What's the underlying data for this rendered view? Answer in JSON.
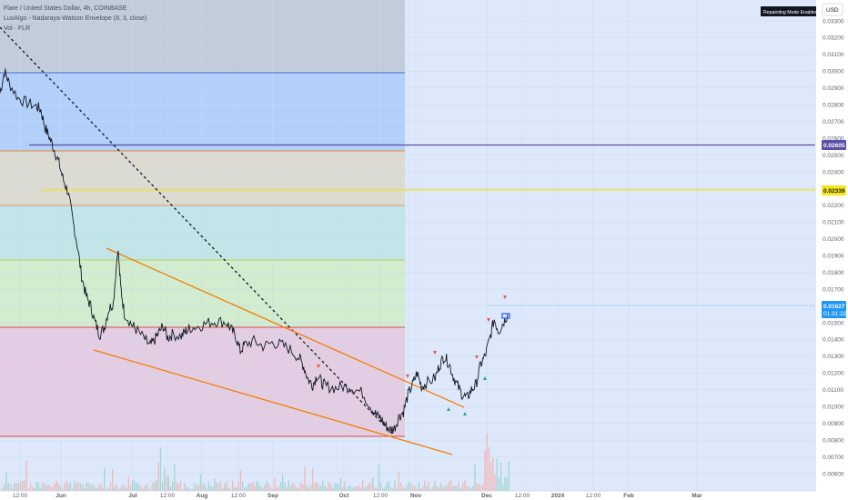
{
  "legend": {
    "symbol_line": "Flare / United States Dollar, 4h, COINBASE",
    "indicator_line": "LuxAlgo - Nadaraya-Watson Envelope (8, 3, close)",
    "volume_line": "Vol · FLR"
  },
  "currency_button": "USD",
  "repaint_badge": "Repainting Mode Enabled",
  "price_tags": {
    "purple": "0.02605",
    "yellow": "0.02339",
    "current_price": "0.01627",
    "countdown": "01:31:22"
  },
  "colors": {
    "purple_line": "#5b4fa8",
    "yellow_line": "#f2e61a",
    "current_tag": "#2196f3",
    "wedge_line": "#f57c00",
    "candle": "#131722"
  },
  "chart_data": {
    "type": "candlestick",
    "title": "Flare / United States Dollar, 4h, COINBASE",
    "y_axis": {
      "ticks": [
        "0.03300",
        "0.03200",
        "0.03100",
        "0.03000",
        "0.02900",
        "0.02800",
        "0.02700",
        "0.02600",
        "0.02500",
        "0.02400",
        "0.02300",
        "0.02200",
        "0.02100",
        "0.02000",
        "0.01900",
        "0.01800",
        "0.01700",
        "0.01600",
        "0.01500",
        "0.01400",
        "0.01300",
        "0.01200",
        "0.01100",
        "0.01000",
        "0.00900",
        "0.00800",
        "0.00700",
        "0.00600"
      ],
      "range": [
        0.0056,
        0.0338
      ]
    },
    "x_axis": {
      "ticks": [
        "12:00",
        "Jun",
        "Jul",
        "12:00",
        "Aug",
        "12:00",
        "Sep",
        "Oct",
        "12:00",
        "Nov",
        "Dec",
        "12:00",
        "2024",
        "12:00",
        "Feb",
        "Mar"
      ]
    },
    "horizontal_levels": [
      {
        "label": "0.02605",
        "value": 0.02605
      },
      {
        "label": "0.02339",
        "value": 0.02339
      }
    ],
    "price_path": [
      [
        0.0,
        0.0287
      ],
      [
        0.5,
        0.03
      ],
      [
        1.0,
        0.0293
      ],
      [
        2.0,
        0.0284
      ],
      [
        3.0,
        0.0281
      ],
      [
        4.0,
        0.0279
      ],
      [
        4.5,
        0.0277
      ],
      [
        5.0,
        0.0266
      ],
      [
        5.5,
        0.026
      ],
      [
        6.0,
        0.0253
      ],
      [
        6.5,
        0.0245
      ],
      [
        7.0,
        0.0235
      ],
      [
        7.5,
        0.0228
      ],
      [
        8.0,
        0.0212
      ],
      [
        8.5,
        0.0197
      ],
      [
        9.0,
        0.0178
      ],
      [
        9.5,
        0.0166
      ],
      [
        10.0,
        0.016
      ],
      [
        10.5,
        0.015
      ],
      [
        11.0,
        0.0143
      ],
      [
        11.5,
        0.0147
      ],
      [
        12.0,
        0.0158
      ],
      [
        12.5,
        0.0162
      ],
      [
        13.0,
        0.0195
      ],
      [
        13.3,
        0.0172
      ],
      [
        13.7,
        0.0156
      ],
      [
        14.5,
        0.0149
      ],
      [
        15.0,
        0.0146
      ],
      [
        16.0,
        0.014
      ],
      [
        16.5,
        0.0136
      ],
      [
        17.0,
        0.0139
      ],
      [
        17.5,
        0.0144
      ],
      [
        18.0,
        0.0148
      ],
      [
        18.5,
        0.0141
      ],
      [
        19.0,
        0.0143
      ],
      [
        20.0,
        0.0142
      ],
      [
        20.5,
        0.0145
      ],
      [
        21.0,
        0.0147
      ],
      [
        22.0,
        0.0148
      ],
      [
        23.0,
        0.015
      ],
      [
        24.0,
        0.0151
      ],
      [
        25.0,
        0.015
      ],
      [
        25.5,
        0.0146
      ],
      [
        26.0,
        0.0142
      ],
      [
        26.5,
        0.0133
      ],
      [
        27.0,
        0.0137
      ],
      [
        28.0,
        0.0139
      ],
      [
        29.0,
        0.0136
      ],
      [
        30.0,
        0.0138
      ],
      [
        31.0,
        0.0137
      ],
      [
        32.0,
        0.0134
      ],
      [
        33.0,
        0.0129
      ],
      [
        33.5,
        0.0124
      ],
      [
        34.0,
        0.0116
      ],
      [
        34.5,
        0.0113
      ],
      [
        35.0,
        0.0119
      ],
      [
        35.5,
        0.0114
      ],
      [
        36.0,
        0.0112
      ],
      [
        37.0,
        0.0111
      ],
      [
        38.0,
        0.0112
      ],
      [
        39.0,
        0.0111
      ],
      [
        40.0,
        0.0108
      ],
      [
        41.0,
        0.0099
      ],
      [
        41.5,
        0.0095
      ],
      [
        42.0,
        0.0093
      ],
      [
        42.5,
        0.0089
      ],
      [
        43.0,
        0.0086
      ],
      [
        43.5,
        0.0087
      ],
      [
        44.0,
        0.0094
      ],
      [
        44.5,
        0.0097
      ],
      [
        45.0,
        0.0107
      ],
      [
        45.5,
        0.0113
      ],
      [
        46.0,
        0.012
      ],
      [
        46.5,
        0.0112
      ],
      [
        47.0,
        0.0114
      ],
      [
        48.0,
        0.0117
      ],
      [
        48.5,
        0.0125
      ],
      [
        49.0,
        0.013
      ],
      [
        49.5,
        0.0126
      ],
      [
        50.0,
        0.0118
      ],
      [
        50.5,
        0.0112
      ],
      [
        51.0,
        0.0107
      ],
      [
        51.5,
        0.0105
      ],
      [
        52.0,
        0.011
      ],
      [
        52.5,
        0.0113
      ],
      [
        53.0,
        0.0125
      ],
      [
        53.5,
        0.013
      ],
      [
        54.0,
        0.014
      ],
      [
        54.5,
        0.0152
      ],
      [
        55.0,
        0.0145
      ],
      [
        55.5,
        0.015
      ],
      [
        56.0,
        0.0155
      ]
    ],
    "annotations": [
      "falling wedge",
      "diagonal dashed trendline",
      "colored horizontal zones"
    ]
  }
}
